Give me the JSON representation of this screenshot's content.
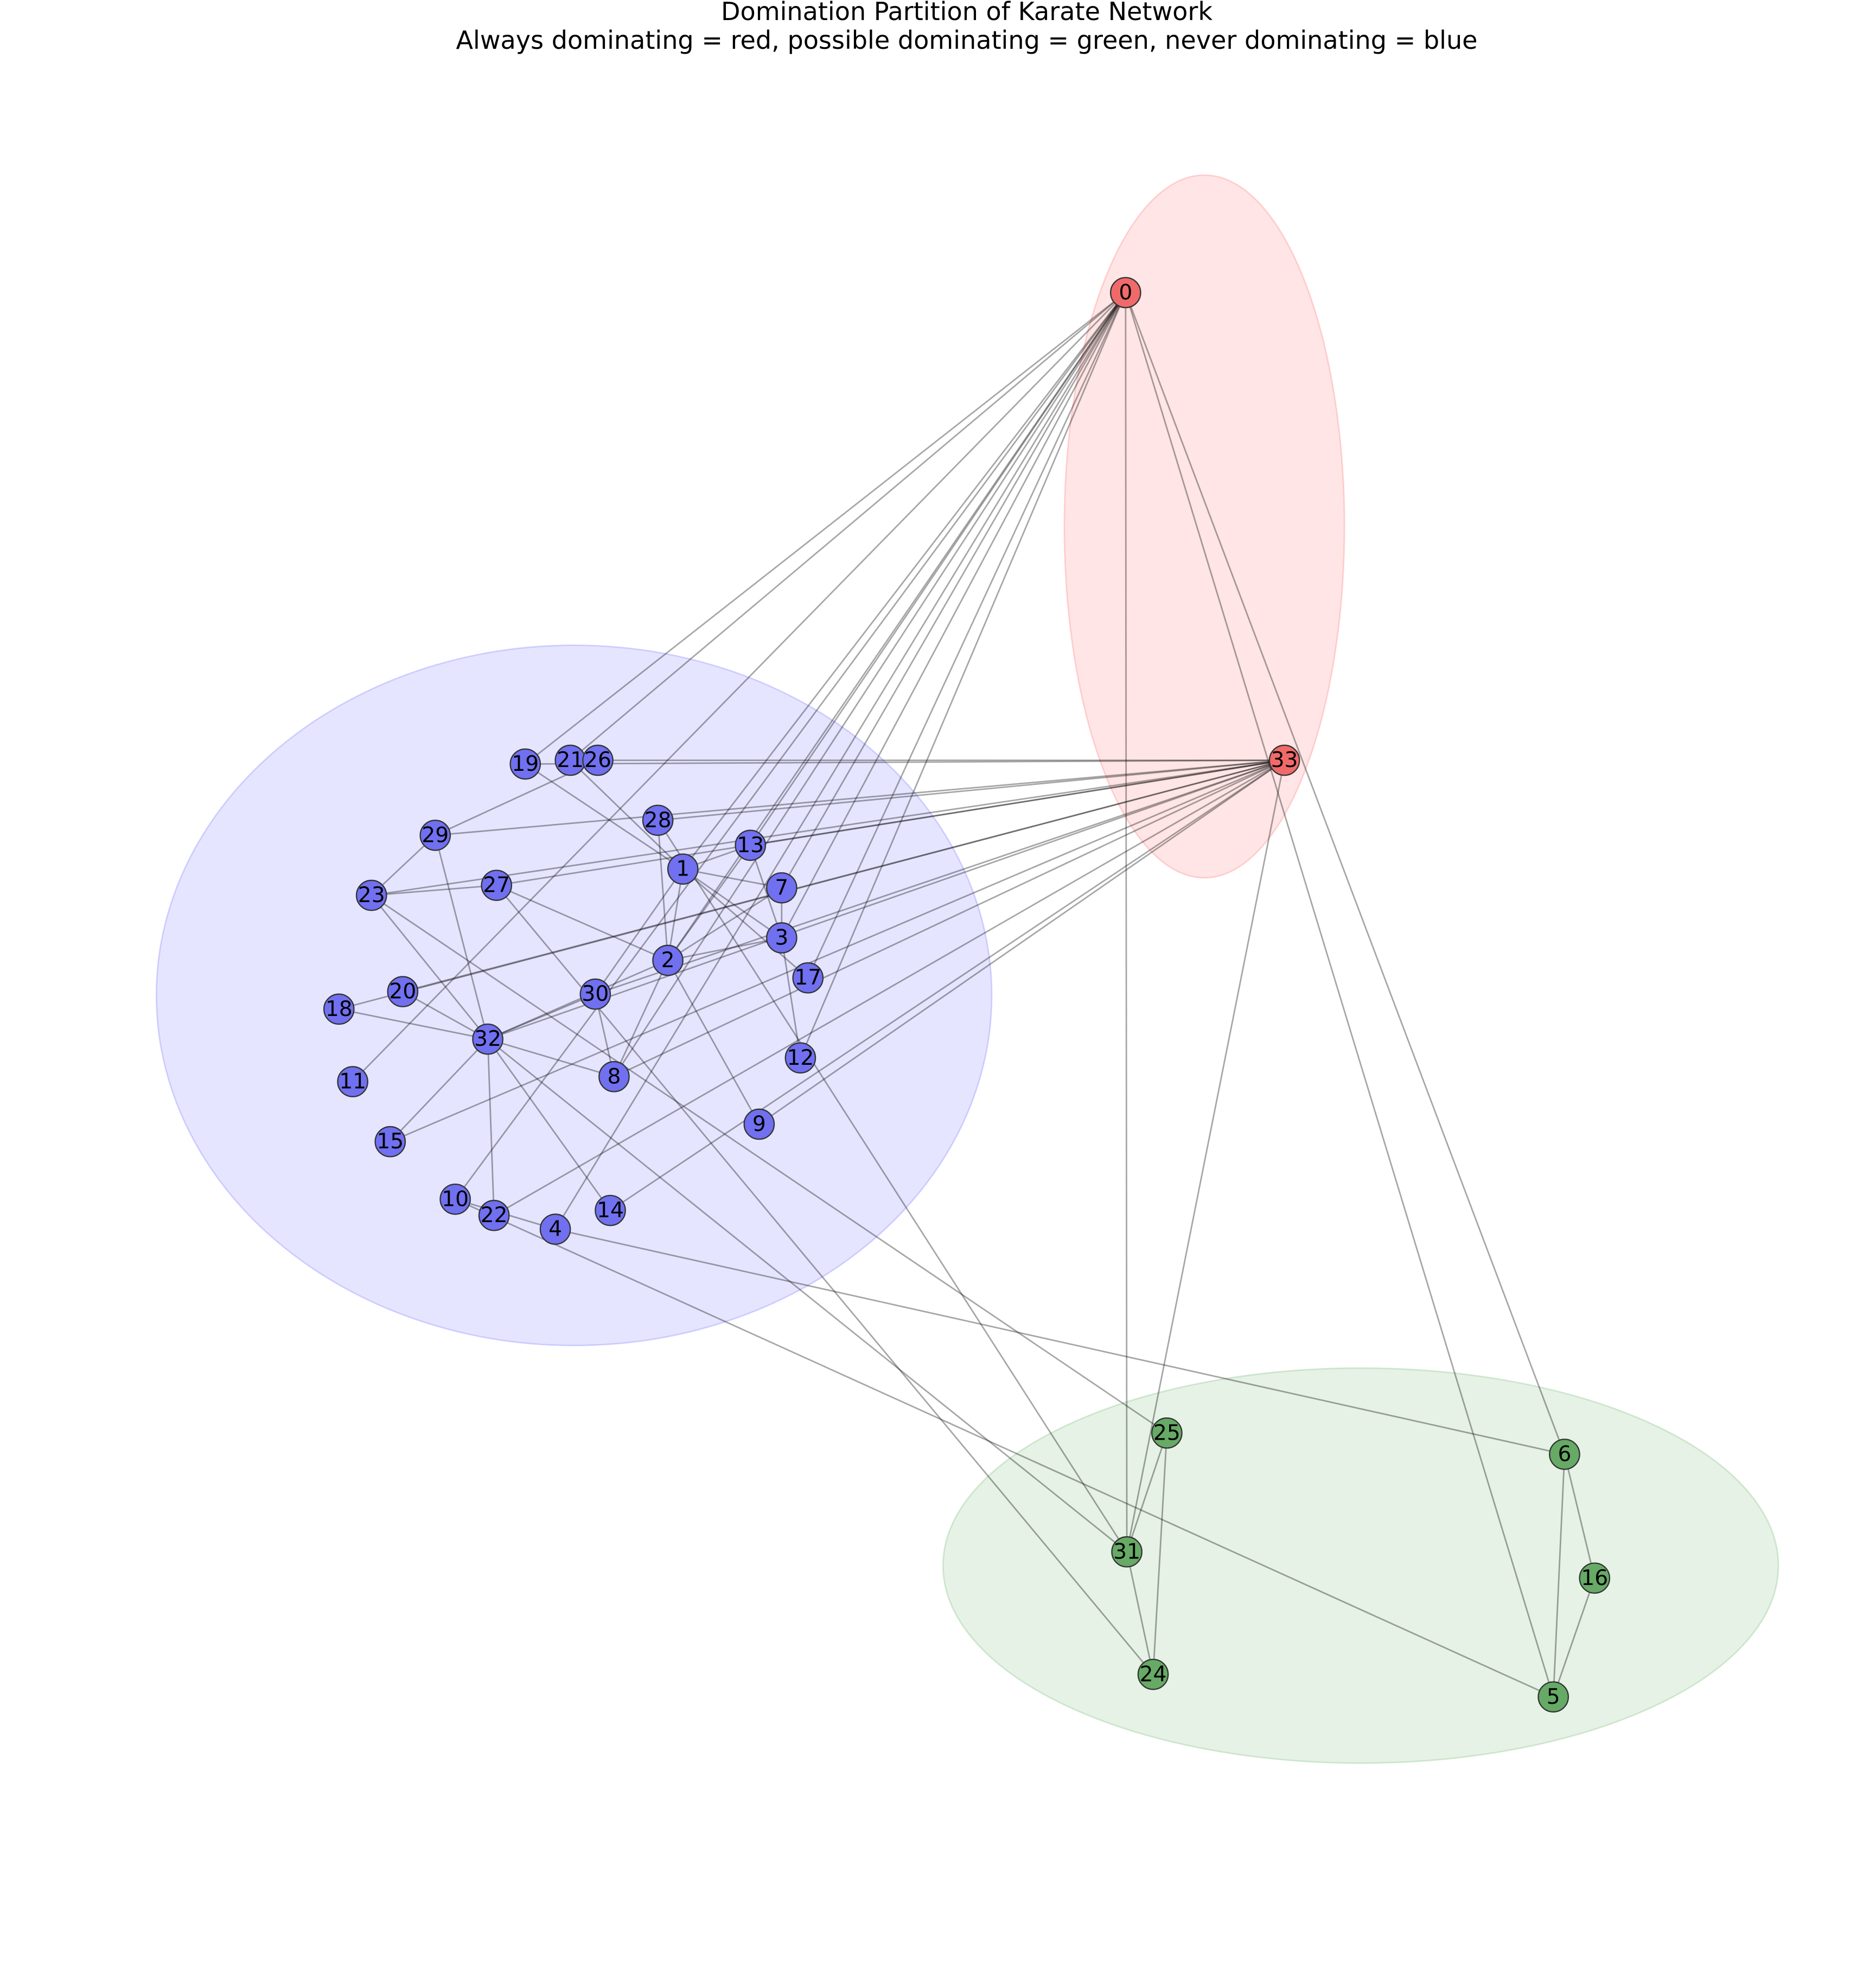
{
  "title": "Domination Partition of Karate Network",
  "subtitle": "Always dominating = red, possible dominating = green, never dominating = blue",
  "groups": [
    {
      "color": "red",
      "nodes": [
        "0",
        "33"
      ]
    },
    {
      "color": "green",
      "nodes": [
        "5",
        "6",
        "16",
        "24",
        "25",
        "31"
      ]
    },
    {
      "color": "blue",
      "nodes": [
        "1",
        "2",
        "3",
        "4",
        "7",
        "8",
        "9",
        "10",
        "11",
        "12",
        "13",
        "14",
        "15",
        "17",
        "18",
        "19",
        "20",
        "21",
        "22",
        "23",
        "26",
        "27",
        "28",
        "29",
        "30",
        "32"
      ]
    }
  ]
}
